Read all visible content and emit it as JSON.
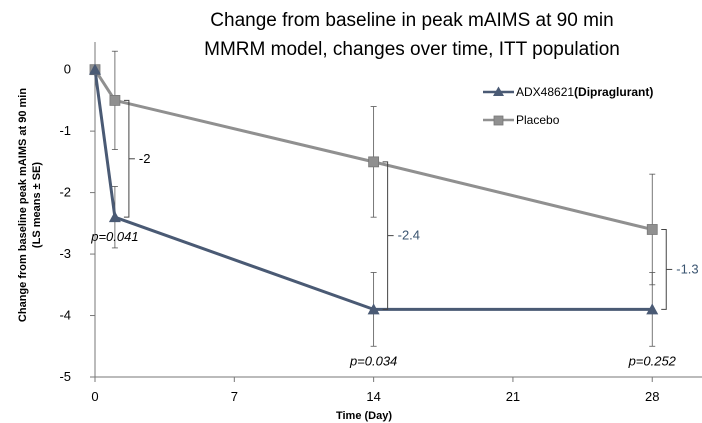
{
  "chart_data": {
    "type": "line",
    "title_lines": [
      "Change from baseline in peak mAIMS at 90 min",
      "MMRM model, changes over time, ITT population"
    ],
    "xlabel": "Time (Day)",
    "ylabel_lines": [
      "Change from baseline peak mAIMS at 90 min",
      "(LS means ± SE)"
    ],
    "xlim": [
      0,
      30.5
    ],
    "ylim": [
      -5,
      0.45
    ],
    "x_ticks": [
      0,
      7,
      14,
      21,
      28
    ],
    "x_tick_labels": [
      "0",
      "7",
      "14",
      "21",
      "28"
    ],
    "y_ticks": [
      0,
      -1,
      -2,
      -3,
      -4,
      -5
    ],
    "y_tick_labels": [
      "0",
      "-1",
      "-2",
      "-3",
      "-4",
      "-5"
    ],
    "legend_position": "right",
    "series": [
      {
        "name": "ADX48621",
        "name_bold": "(Dipraglurant)",
        "marker": "triangle",
        "color": "#4a5a74",
        "points": [
          {
            "x": 0,
            "y": 0,
            "err": 0
          },
          {
            "x": 1,
            "y": -2.4,
            "err": 0.5
          },
          {
            "x": 14,
            "y": -3.9,
            "err": 0.6
          },
          {
            "x": 28,
            "y": -3.9,
            "err": 0.6
          }
        ]
      },
      {
        "name": "Placebo",
        "name_bold": "",
        "marker": "square",
        "color": "#909090",
        "points": [
          {
            "x": 0,
            "y": 0,
            "err": 0
          },
          {
            "x": 1,
            "y": -0.5,
            "err": 0.8
          },
          {
            "x": 14,
            "y": -1.5,
            "err": 0.9
          },
          {
            "x": 28,
            "y": -2.6,
            "err": 0.9
          }
        ]
      }
    ],
    "differences": [
      {
        "x": 1,
        "label": "-2",
        "color": "#000000"
      },
      {
        "x": 14,
        "label": "-2.4",
        "color": "#3a5470"
      },
      {
        "x": 28,
        "label": "-1.3",
        "color": "#3a5470"
      }
    ],
    "p_values": [
      {
        "x": 1,
        "label": "p=0.041"
      },
      {
        "x": 14,
        "label": "p=0.034"
      },
      {
        "x": 28,
        "label": "p=0.252"
      }
    ]
  }
}
